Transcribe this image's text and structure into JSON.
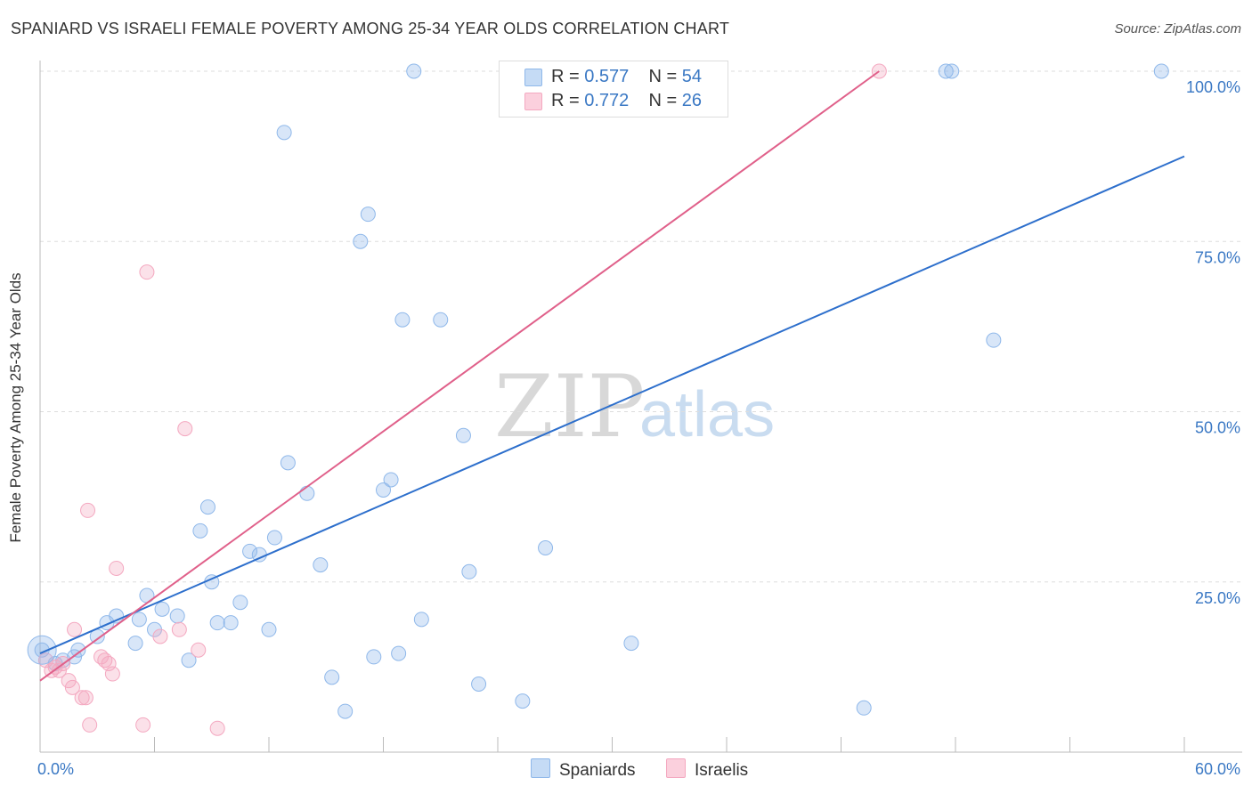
{
  "chart_data": {
    "type": "scatter",
    "title": "SPANIARD VS ISRAELI FEMALE POVERTY AMONG 25-34 YEAR OLDS CORRELATION CHART",
    "source": "Source: ZipAtlas.com",
    "watermark": "ZIPatlas",
    "xlabel": "",
    "ylabel": "Female Poverty Among 25-34 Year Olds",
    "xlim": [
      0,
      60
    ],
    "ylim": [
      0,
      100
    ],
    "x_tick_labels": [
      "0.0%",
      "60.0%"
    ],
    "y_tick_labels": [
      "100.0%",
      "75.0%",
      "50.0%",
      "25.0%"
    ],
    "y_ticks": [
      100,
      75,
      50,
      25
    ],
    "series": [
      {
        "name": "Spaniards",
        "color": "#8fb8ea",
        "line_color": "#2d6fcc",
        "R": "0.577",
        "N": "54",
        "trend": [
          [
            0,
            14.5
          ],
          [
            60,
            87.5
          ]
        ],
        "points": [
          [
            0.1,
            15
          ],
          [
            0.8,
            13
          ],
          [
            1.2,
            13.5
          ],
          [
            2.0,
            15
          ],
          [
            1.8,
            14
          ],
          [
            3.0,
            17
          ],
          [
            3.5,
            19
          ],
          [
            4.0,
            20
          ],
          [
            5.0,
            16
          ],
          [
            5.2,
            19.5
          ],
          [
            5.6,
            23
          ],
          [
            6.0,
            18
          ],
          [
            6.4,
            21
          ],
          [
            7.2,
            20
          ],
          [
            7.8,
            13.5
          ],
          [
            8.4,
            32.5
          ],
          [
            8.8,
            36
          ],
          [
            9.0,
            25
          ],
          [
            9.3,
            19
          ],
          [
            10.0,
            19
          ],
          [
            10.5,
            22
          ],
          [
            11.0,
            29.5
          ],
          [
            11.5,
            29
          ],
          [
            12.0,
            18
          ],
          [
            12.3,
            31.5
          ],
          [
            12.8,
            91
          ],
          [
            13.0,
            42.5
          ],
          [
            14.0,
            38
          ],
          [
            14.7,
            27.5
          ],
          [
            15.3,
            11
          ],
          [
            16.0,
            6
          ],
          [
            16.8,
            75
          ],
          [
            17.2,
            79
          ],
          [
            17.5,
            14
          ],
          [
            18.0,
            38.5
          ],
          [
            18.4,
            40
          ],
          [
            18.8,
            14.5
          ],
          [
            19.0,
            63.5
          ],
          [
            19.6,
            100
          ],
          [
            20.0,
            19.5
          ],
          [
            21.0,
            63.5
          ],
          [
            22.2,
            46.5
          ],
          [
            22.5,
            26.5
          ],
          [
            23.0,
            10
          ],
          [
            25.3,
            7.5
          ],
          [
            26.5,
            30
          ],
          [
            31.0,
            16
          ],
          [
            43.2,
            6.5
          ],
          [
            47.5,
            100
          ],
          [
            47.8,
            100
          ],
          [
            50.0,
            60.5
          ],
          [
            58.8,
            100
          ]
        ]
      },
      {
        "name": "Israelis",
        "color": "#f4a8c0",
        "line_color": "#e0608a",
        "R": "0.772",
        "N": "26",
        "trend": [
          [
            0,
            10.5
          ],
          [
            44,
            100
          ]
        ],
        "points": [
          [
            0.3,
            13.5
          ],
          [
            0.6,
            12
          ],
          [
            0.8,
            12.5
          ],
          [
            1.0,
            12
          ],
          [
            1.2,
            13
          ],
          [
            1.5,
            10.5
          ],
          [
            1.7,
            9.5
          ],
          [
            1.8,
            18
          ],
          [
            2.2,
            8
          ],
          [
            2.4,
            8
          ],
          [
            2.5,
            35.5
          ],
          [
            2.6,
            4
          ],
          [
            3.2,
            14
          ],
          [
            3.4,
            13.5
          ],
          [
            3.6,
            13
          ],
          [
            3.8,
            11.5
          ],
          [
            4.0,
            27
          ],
          [
            5.4,
            4
          ],
          [
            5.6,
            70.5
          ],
          [
            6.3,
            17
          ],
          [
            7.3,
            18
          ],
          [
            7.6,
            47.5
          ],
          [
            8.3,
            15
          ],
          [
            9.3,
            3.5
          ],
          [
            44.0,
            100
          ]
        ]
      }
    ]
  },
  "legend": {
    "row1": {
      "r_label": "R =",
      "r_value": "0.577",
      "n_label": "N =",
      "n_value": "54"
    },
    "row2": {
      "r_label": "R =",
      "r_value": "0.772",
      "n_label": "N =",
      "n_value": "26"
    }
  },
  "bottom_legend": {
    "spaniards": "Spaniards",
    "israelis": "Israelis"
  }
}
